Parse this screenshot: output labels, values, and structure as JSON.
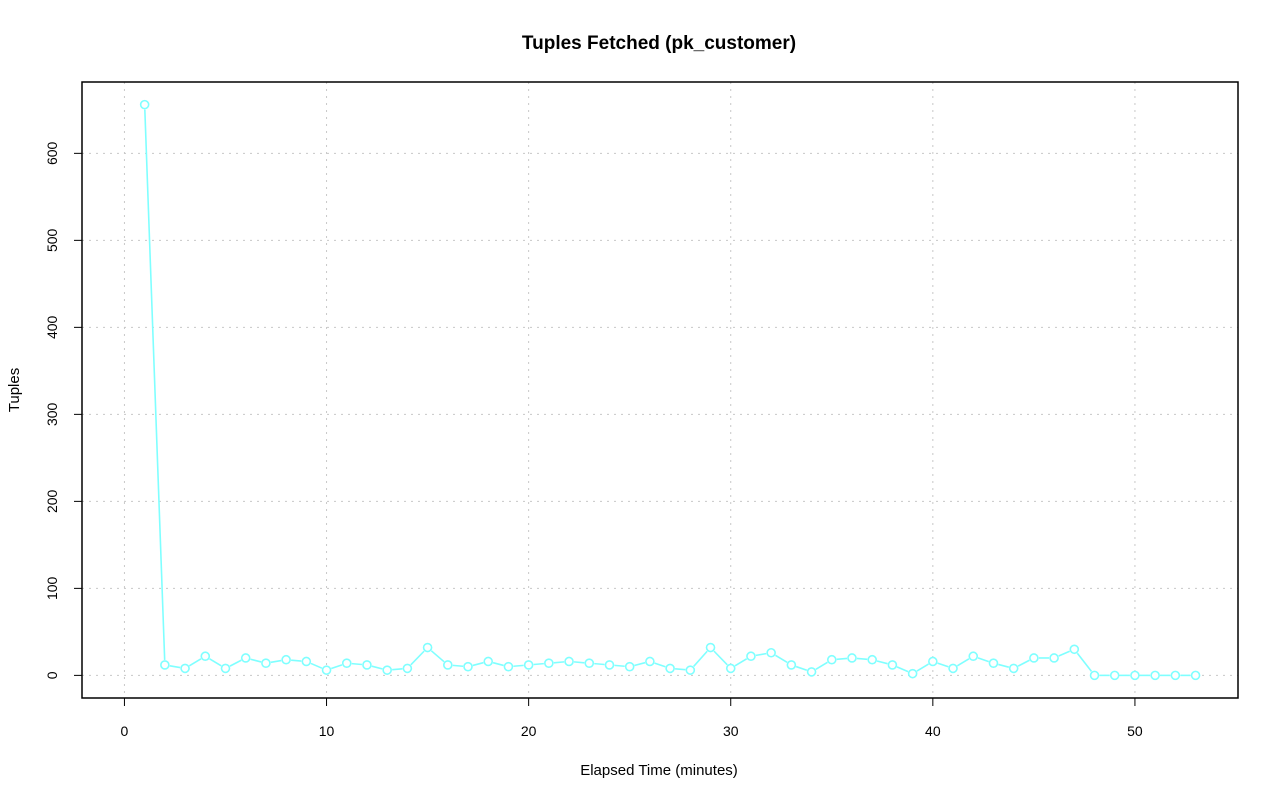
{
  "chart_data": {
    "type": "line",
    "title": "Tuples Fetched (pk_customer)",
    "xlabel": "Elapsed Time (minutes)",
    "ylabel": "Tuples",
    "xlim": [
      -2.1,
      55.1
    ],
    "ylim": [
      -26,
      682
    ],
    "x_ticks": [
      0,
      10,
      20,
      30,
      40,
      50
    ],
    "y_ticks": [
      0,
      100,
      200,
      300,
      400,
      500,
      600
    ],
    "grid": true,
    "series_color": "#7fffff",
    "series": [
      {
        "x": [
          1,
          2,
          3,
          4,
          5,
          6,
          7,
          8,
          9,
          10,
          11,
          12,
          13,
          14,
          15,
          16,
          17,
          18,
          19,
          20,
          21,
          22,
          23,
          24,
          25,
          26,
          27,
          28,
          29,
          30,
          31,
          32,
          33,
          34,
          35,
          36,
          37,
          38,
          39,
          40,
          41,
          42,
          43,
          44,
          45,
          46,
          47,
          48,
          49,
          50,
          51,
          52,
          53
        ],
        "values": [
          656,
          12,
          8,
          22,
          8,
          20,
          14,
          18,
          16,
          6,
          14,
          12,
          6,
          8,
          32,
          12,
          10,
          16,
          10,
          12,
          14,
          16,
          14,
          12,
          10,
          16,
          8,
          6,
          32,
          8,
          22,
          26,
          12,
          4,
          18,
          20,
          18,
          12,
          2,
          16,
          8,
          22,
          14,
          8,
          20,
          20,
          30,
          0,
          0,
          0,
          0,
          0,
          0
        ]
      }
    ]
  }
}
